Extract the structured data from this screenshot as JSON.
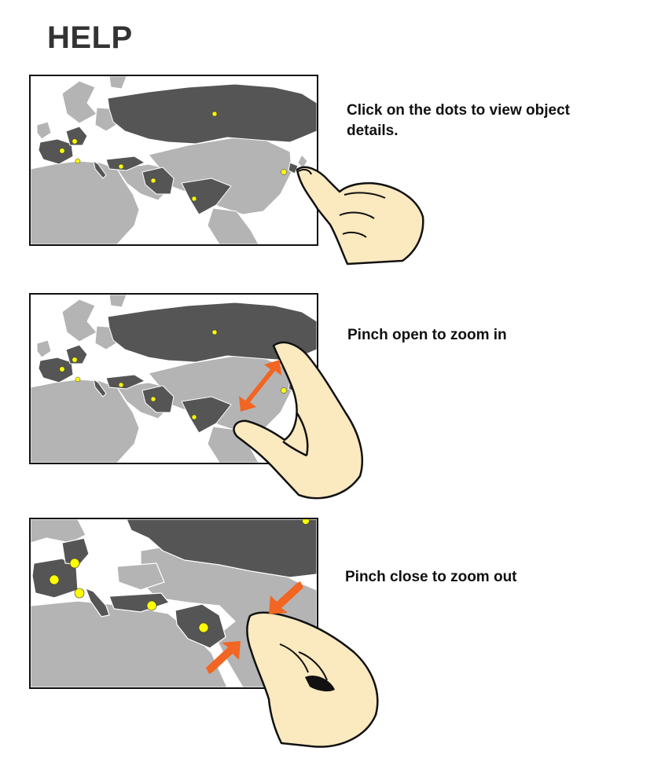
{
  "title": "HELP",
  "sections": [
    {
      "id": "tap",
      "text": "Click on the dots to view object details.",
      "gesture": "tap"
    },
    {
      "id": "pinch-open",
      "text": "Pinch open to zoom in",
      "gesture": "pinch-open"
    },
    {
      "id": "pinch-close",
      "text": "Pinch close to zoom out",
      "gesture": "pinch-close"
    }
  ],
  "colors": {
    "highlighted_country": "#555555",
    "other_land": "#b4b4b4",
    "borders": "#ffffff",
    "sea": "#ffffff",
    "object_dot": "#ffff00",
    "arrow": "#f26522",
    "hand_fill": "#fbe9bf",
    "outline": "#111111"
  }
}
